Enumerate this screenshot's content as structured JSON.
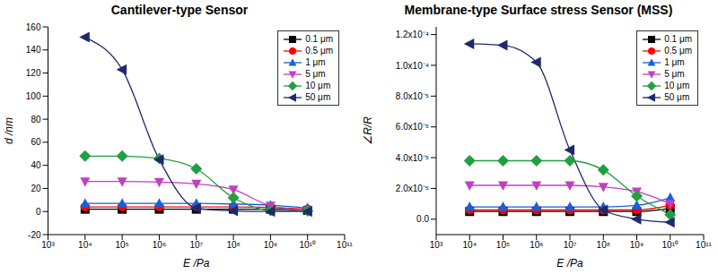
{
  "chart_data": [
    {
      "type": "line",
      "title": "Cantilever-type Sensor",
      "xlabel": "E /Pa",
      "ylabel": "d /nm",
      "log": "x",
      "grid": false,
      "legend": "upper right",
      "xlim": [
        1000,
        100000000000
      ],
      "xticks": [
        {
          "value": 1000,
          "label": "10³"
        },
        {
          "value": 10000,
          "label": "10⁴"
        },
        {
          "value": 100000,
          "label": "10⁵"
        },
        {
          "value": 1000000,
          "label": "10⁶"
        },
        {
          "value": 10000000,
          "label": "10⁷"
        },
        {
          "value": 100000000,
          "label": "10⁸"
        },
        {
          "value": 1000000000,
          "label": "10⁹"
        },
        {
          "value": 10000000000,
          "label": "10¹⁰"
        },
        {
          "value": 100000000000,
          "label": "10¹¹"
        }
      ],
      "ylim": [
        -20,
        160
      ],
      "yticks": [
        -20,
        0,
        20,
        40,
        60,
        80,
        100,
        120,
        140,
        160
      ],
      "x": [
        10000,
        100000,
        1000000,
        10000000,
        100000000,
        1000000000,
        10000000000
      ],
      "series": [
        {
          "name": "0.1 μm",
          "color": "#000000",
          "marker": "square",
          "values": [
            2,
            2,
            2,
            2,
            2,
            2,
            1
          ]
        },
        {
          "name": "0.5 μm",
          "color": "#ff0000",
          "marker": "circle",
          "values": [
            4,
            4,
            4,
            4,
            4,
            3.5,
            2
          ]
        },
        {
          "name": "1 μm",
          "color": "#1a5fd8",
          "marker": "triangle",
          "values": [
            7,
            7,
            7,
            7,
            6.5,
            5.5,
            3
          ]
        },
        {
          "name": "5 μm",
          "color": "#c040c0",
          "marker": "triangle_down",
          "values": [
            26,
            26,
            25.5,
            24,
            19,
            5,
            1
          ]
        },
        {
          "name": "10 μm",
          "color": "#20a040",
          "marker": "diamond",
          "values": [
            48,
            48,
            46,
            37,
            12,
            1,
            0.5
          ]
        },
        {
          "name": "50 μm",
          "color": "#1f2a6b",
          "marker": "triangle_left",
          "values": [
            151,
            123,
            45,
            3,
            0.5,
            0,
            0
          ]
        }
      ]
    },
    {
      "type": "line",
      "title": "Membrane-type Surface stress Sensor (MSS)",
      "xlabel": "E /Pa",
      "ylabel": "∠R/R",
      "log": "x",
      "grid": false,
      "legend": "upper right",
      "xlim": [
        1000,
        100000000000
      ],
      "xticks": [
        {
          "value": 1000,
          "label": "10³"
        },
        {
          "value": 10000,
          "label": "10⁴"
        },
        {
          "value": 100000,
          "label": "10⁵"
        },
        {
          "value": 1000000,
          "label": "10⁶"
        },
        {
          "value": 10000000,
          "label": "10⁷"
        },
        {
          "value": 100000000,
          "label": "10⁸"
        },
        {
          "value": 1000000000,
          "label": "10⁹"
        },
        {
          "value": 10000000000,
          "label": "10¹⁰"
        },
        {
          "value": 100000000000,
          "label": "10¹¹"
        }
      ],
      "ylim": [
        -1e-05,
        0.000125
      ],
      "yticks": [
        {
          "value": 0,
          "label": "0.0"
        },
        {
          "value": 2e-05,
          "label": "2.0x10⁻⁵"
        },
        {
          "value": 4e-05,
          "label": "4.0x10⁻⁵"
        },
        {
          "value": 6e-05,
          "label": "6.0x10⁻⁵"
        },
        {
          "value": 8e-05,
          "label": "8.0x10⁻⁵"
        },
        {
          "value": 0.0001,
          "label": "1.0x10⁻⁴"
        },
        {
          "value": 0.00012,
          "label": "1.2x10⁻⁴"
        }
      ],
      "x": [
        10000,
        100000,
        1000000,
        10000000,
        100000000,
        1000000000,
        10000000000
      ],
      "series": [
        {
          "name": "0.1 μm",
          "color": "#000000",
          "marker": "square",
          "values": [
            5e-06,
            5e-06,
            5e-06,
            5e-06,
            5e-06,
            5e-06,
            7e-06
          ]
        },
        {
          "name": "0.5 μm",
          "color": "#ff0000",
          "marker": "circle",
          "values": [
            6e-06,
            6e-06,
            6e-06,
            6e-06,
            6e-06,
            6e-06,
            9e-06
          ]
        },
        {
          "name": "1 μm",
          "color": "#1a5fd8",
          "marker": "triangle",
          "values": [
            8e-06,
            8e-06,
            8e-06,
            8e-06,
            8e-06,
            9e-06,
            1.4e-05
          ]
        },
        {
          "name": "5 μm",
          "color": "#c040c0",
          "marker": "triangle_down",
          "values": [
            2.2e-05,
            2.2e-05,
            2.2e-05,
            2.2e-05,
            2.1e-05,
            1.8e-05,
            1e-05
          ]
        },
        {
          "name": "10 μm",
          "color": "#20a040",
          "marker": "diamond",
          "values": [
            3.8e-05,
            3.8e-05,
            3.8e-05,
            3.8e-05,
            3.2e-05,
            1.5e-05,
            3e-06
          ]
        },
        {
          "name": "50 μm",
          "color": "#1f2a6b",
          "marker": "triangle_left",
          "values": [
            0.000114,
            0.000113,
            0.000102,
            4.5e-05,
            6e-06,
            0,
            -2e-06
          ]
        }
      ]
    }
  ]
}
